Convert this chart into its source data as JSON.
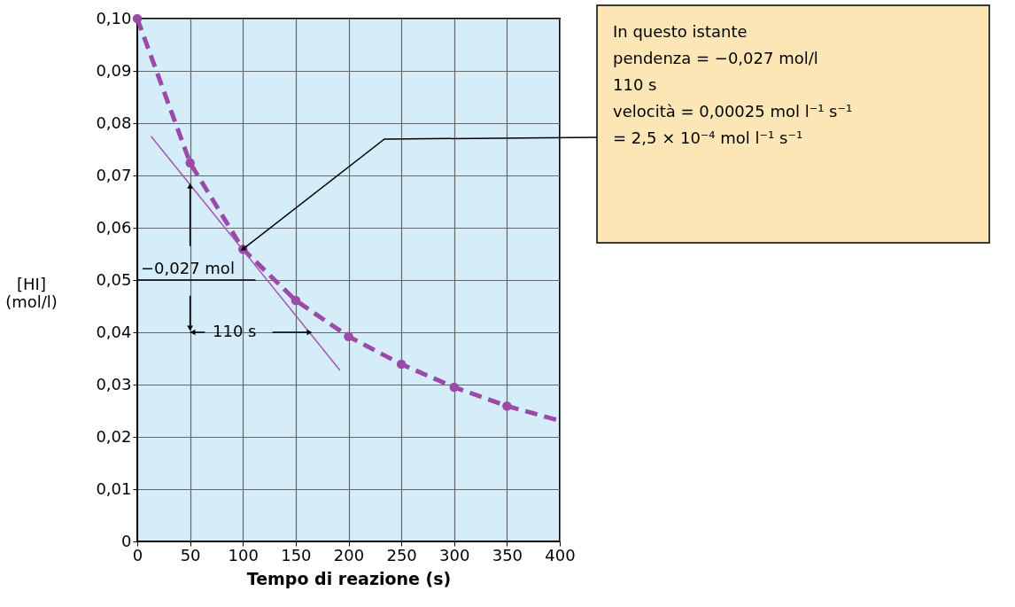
{
  "chart_data": {
    "type": "line",
    "xlabel": "Tempo di reazione (s)",
    "ylabel": "[HI]\n(mol/l)",
    "xlim": [
      0,
      400
    ],
    "ylim": [
      0,
      0.1
    ],
    "xticks": [
      0,
      50,
      100,
      150,
      200,
      250,
      300,
      350,
      400
    ],
    "yticks": [
      {
        "value": 0,
        "label": "0"
      },
      {
        "value": 0.01,
        "label": "0,01"
      },
      {
        "value": 0.02,
        "label": "0,02"
      },
      {
        "value": 0.03,
        "label": "0,03"
      },
      {
        "value": 0.04,
        "label": "0,04"
      },
      {
        "value": 0.05,
        "label": "0,05"
      },
      {
        "value": 0.06,
        "label": "0,06"
      },
      {
        "value": 0.07,
        "label": "0,07"
      },
      {
        "value": 0.08,
        "label": "0,08"
      },
      {
        "value": 0.09,
        "label": "0,09"
      },
      {
        "value": 0.1,
        "label": "0,10"
      }
    ],
    "grid": true,
    "series": [
      {
        "color": "#9b4aa8",
        "line_style": "dashed",
        "x": [
          0,
          50,
          100,
          150,
          200,
          250,
          300,
          350,
          400
        ],
        "values": [
          0.1,
          0.0724,
          0.0559,
          0.0461,
          0.0392,
          0.0339,
          0.0295,
          0.0259,
          0.0231
        ]
      },
      {
        "type": "scatter",
        "color": "#9b4aa8",
        "marker": "circle",
        "x": [
          0,
          50,
          100,
          150,
          200,
          250,
          300,
          350
        ],
        "values": [
          0.1,
          0.0724,
          0.0559,
          0.0461,
          0.0392,
          0.0339,
          0.0295,
          0.0259
        ]
      },
      {
        "color": "#a655b0",
        "line_style": "solid",
        "x": [
          13,
          192
        ],
        "values": [
          0.0775,
          0.0327
        ]
      }
    ],
    "annotations": [
      {
        "text": "−0,027 mol",
        "x": 50,
        "y": 0.068
      },
      {
        "text": "110 s",
        "x": 163,
        "y": 0.04
      },
      {
        "text": "In questo istante\npendenza = −0,027 mol/l\n110 s\nvelocità = 0,00025 mol l⁻¹ s⁻¹\n= 2,5 × 10⁻⁴ mol l⁻¹ s⁻¹",
        "x": 100,
        "y": 0.0559
      }
    ]
  }
}
